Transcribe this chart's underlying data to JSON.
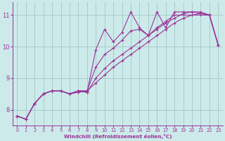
{
  "background_color": "#cceaea",
  "grid_color": "#aacccc",
  "line_color": "#993399",
  "marker_color": "#993399",
  "xlabel": "Windchill (Refroidissement éolien,°C)",
  "xlim": [
    -0.5,
    23.5
  ],
  "ylim": [
    7.5,
    11.4
  ],
  "yticks": [
    8,
    9,
    10,
    11
  ],
  "xticks": [
    0,
    1,
    2,
    3,
    4,
    5,
    6,
    7,
    8,
    9,
    10,
    11,
    12,
    13,
    14,
    15,
    16,
    17,
    18,
    19,
    20,
    21,
    22,
    23
  ],
  "series": [
    [
      7.8,
      7.7,
      8.2,
      8.5,
      8.6,
      8.6,
      8.5,
      8.6,
      8.55,
      9.9,
      10.55,
      10.15,
      10.45,
      11.1,
      10.6,
      10.35,
      11.1,
      10.6,
      11.1,
      11.1,
      11.1,
      11.05,
      11.0,
      10.05
    ],
    [
      7.8,
      7.7,
      8.2,
      8.5,
      8.6,
      8.6,
      8.5,
      8.6,
      8.55,
      9.0,
      9.3,
      9.55,
      9.75,
      9.95,
      10.15,
      10.35,
      10.55,
      10.75,
      10.9,
      11.05,
      11.1,
      11.1,
      11.0,
      10.05
    ],
    [
      7.8,
      7.7,
      8.2,
      8.5,
      8.6,
      8.6,
      8.5,
      8.55,
      8.6,
      9.35,
      9.75,
      9.95,
      10.2,
      10.5,
      10.55,
      10.35,
      10.6,
      10.8,
      11.0,
      11.0,
      11.0,
      11.0,
      11.0,
      10.05
    ],
    [
      7.8,
      7.7,
      8.2,
      8.5,
      8.6,
      8.6,
      8.5,
      8.6,
      8.6,
      8.85,
      9.1,
      9.35,
      9.55,
      9.75,
      9.95,
      10.15,
      10.35,
      10.55,
      10.75,
      10.9,
      11.0,
      11.05,
      11.0,
      10.05
    ]
  ]
}
